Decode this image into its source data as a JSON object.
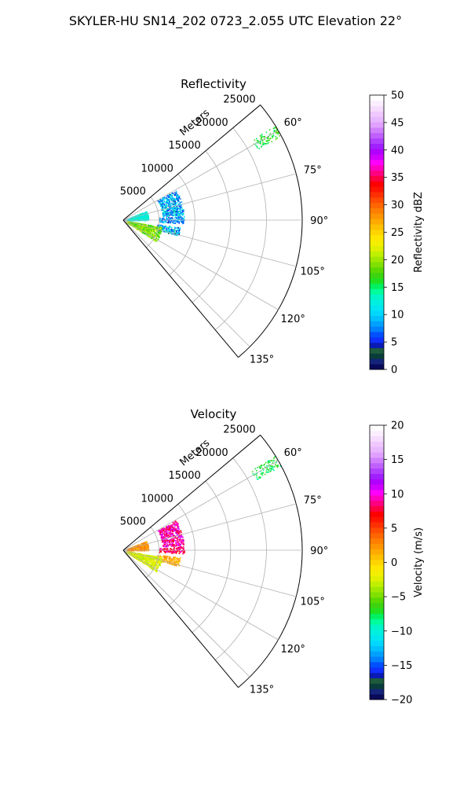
{
  "figure": {
    "suptitle": "SKYLER-HU  SN14_202  0723_2.055 UTC Elevation 22°"
  },
  "colors": {
    "grid": "#b0b0b0",
    "refl_cmap": [
      [
        0,
        "#0a0a5a"
      ],
      [
        1,
        "#13247a"
      ],
      [
        2,
        "#0a3d3a"
      ],
      [
        3,
        "#1e5b3c"
      ],
      [
        4,
        "#0a1ab4"
      ],
      [
        5,
        "#1030ff"
      ],
      [
        6,
        "#0050ff"
      ],
      [
        7,
        "#0080ff"
      ],
      [
        8,
        "#00a0ff"
      ],
      [
        9,
        "#00c0ff"
      ],
      [
        10,
        "#00d8ff"
      ],
      [
        11,
        "#00e6f0"
      ],
      [
        12,
        "#00f0e0"
      ],
      [
        13,
        "#00f5c8"
      ],
      [
        14,
        "#00ff9a"
      ],
      [
        15,
        "#00f060"
      ],
      [
        16,
        "#20e020"
      ],
      [
        17,
        "#3cd410"
      ],
      [
        18,
        "#5ad800"
      ],
      [
        19,
        "#80e000"
      ],
      [
        20,
        "#a0e800"
      ],
      [
        21,
        "#c0f000"
      ],
      [
        22,
        "#e0f000"
      ],
      [
        23,
        "#f4ee00"
      ],
      [
        24,
        "#ffe600"
      ],
      [
        25,
        "#ffd400"
      ],
      [
        26,
        "#ffc000"
      ],
      [
        27,
        "#ffaa00"
      ],
      [
        28,
        "#ff9400"
      ],
      [
        29,
        "#ff7e00"
      ],
      [
        30,
        "#ff6600"
      ],
      [
        31,
        "#ff4c00"
      ],
      [
        32,
        "#ff3000"
      ],
      [
        33,
        "#ff1400"
      ],
      [
        34,
        "#ff0000"
      ],
      [
        35,
        "#ff0040"
      ],
      [
        36,
        "#ff0080"
      ],
      [
        37,
        "#ff00c0"
      ],
      [
        38,
        "#ff00ff"
      ],
      [
        39,
        "#d000ff"
      ],
      [
        40,
        "#b000ff"
      ],
      [
        41,
        "#a020ff"
      ],
      [
        42,
        "#b040ff"
      ],
      [
        43,
        "#c060ff"
      ],
      [
        44,
        "#d080ff"
      ],
      [
        45,
        "#e0a0ff"
      ],
      [
        46,
        "#e8b8ff"
      ],
      [
        47,
        "#f0c8ff"
      ],
      [
        48,
        "#f6dcff"
      ],
      [
        49,
        "#fbeeff"
      ],
      [
        50,
        "#ffffff"
      ]
    ]
  },
  "chart_data": [
    {
      "type": "polar",
      "title": "Reflectivity",
      "radial_label": "Meters",
      "radial_ticks": [
        5000,
        10000,
        15000,
        20000,
        25000
      ],
      "rlim": [
        0,
        25000
      ],
      "angle_ticks": [
        "60°",
        "75°",
        "90°",
        "105°",
        "120°",
        "135°"
      ],
      "angle_values": [
        60,
        75,
        90,
        105,
        120,
        135
      ],
      "theta_range": [
        50,
        140
      ],
      "colorbar": {
        "label": "Reflectivity dBZ",
        "ticks": [
          "0",
          "5",
          "10",
          "15",
          "20",
          "25",
          "30",
          "35",
          "40",
          "45",
          "50"
        ],
        "range": [
          0,
          50
        ]
      },
      "echo_regions": [
        {
          "theta": [
            60,
            85
          ],
          "r": [
            5500,
            8500
          ],
          "value_range": [
            4,
            14
          ]
        },
        {
          "theta": [
            86,
            93
          ],
          "r": [
            5000,
            8500
          ],
          "value_range": [
            4,
            12
          ]
        },
        {
          "theta": [
            97,
            106
          ],
          "r": [
            4800,
            8000
          ],
          "value_range": [
            3,
            14
          ]
        },
        {
          "theta": [
            68,
            90
          ],
          "r": [
            500,
            3500
          ],
          "value_range": [
            10,
            14
          ]
        },
        {
          "theta": [
            100,
            123
          ],
          "r": [
            500,
            5500
          ],
          "value_range": [
            16,
            22
          ]
        },
        {
          "theta": [
            58,
            62
          ],
          "r": [
            21000,
            25000
          ],
          "value_range": [
            14,
            18
          ]
        }
      ]
    },
    {
      "type": "polar",
      "title": "Velocity",
      "radial_label": "Meters",
      "radial_ticks": [
        5000,
        10000,
        15000,
        20000,
        25000
      ],
      "rlim": [
        0,
        25000
      ],
      "angle_ticks": [
        "60°",
        "75°",
        "90°",
        "105°",
        "120°",
        "135°"
      ],
      "angle_values": [
        60,
        75,
        90,
        105,
        120,
        135
      ],
      "theta_range": [
        50,
        140
      ],
      "colorbar": {
        "label": "Velocity (m/s)",
        "ticks": [
          "−20",
          "−15",
          "−10",
          "−5",
          "0",
          "5",
          "10",
          "15",
          "20"
        ],
        "range": [
          -20,
          20
        ]
      },
      "echo_regions": [
        {
          "theta": [
            60,
            85
          ],
          "r": [
            5500,
            8500
          ],
          "value_range": [
            7,
            12
          ]
        },
        {
          "theta": [
            86,
            93
          ],
          "r": [
            5000,
            8500
          ],
          "value_range": [
            6,
            10
          ]
        },
        {
          "theta": [
            97,
            106
          ],
          "r": [
            4800,
            8000
          ],
          "value_range": [
            0,
            3
          ]
        },
        {
          "theta": [
            68,
            90
          ],
          "r": [
            500,
            3500
          ],
          "value_range": [
            1,
            4
          ]
        },
        {
          "theta": [
            100,
            123
          ],
          "r": [
            500,
            5500
          ],
          "value_range": [
            -4,
            -1
          ]
        },
        {
          "theta": [
            58,
            62
          ],
          "r": [
            21000,
            25000
          ],
          "value_range": [
            -9,
            -6
          ]
        }
      ]
    }
  ]
}
